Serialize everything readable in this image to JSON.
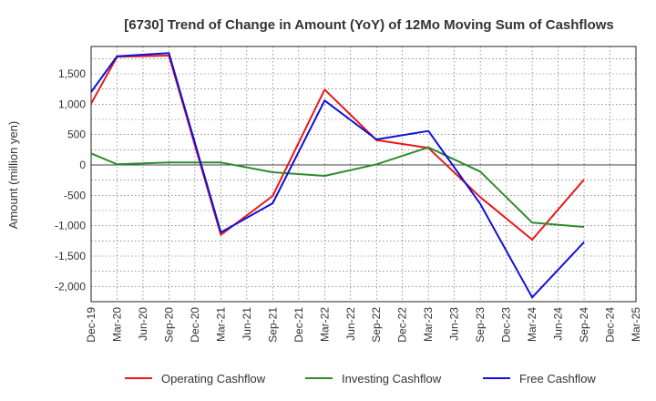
{
  "chart_data": {
    "type": "line",
    "title": "[6730]  Trend of Change in Amount (YoY) of 12Mo Moving Sum of Cashflows",
    "xlabel": "",
    "ylabel": "Amount (million yen)",
    "ylim": [
      -2250,
      1950
    ],
    "y_ticks": [
      1500,
      1000,
      500,
      0,
      -500,
      -1000,
      -1500,
      -2000
    ],
    "y_tick_labels": [
      "1,500",
      "1,000",
      "500",
      "0",
      "-500",
      "-1,000",
      "-1,500",
      "-2,000"
    ],
    "grid": true,
    "legend_position": "bottom",
    "categories": [
      "Dec-19",
      "Mar-20",
      "Jun-20",
      "Sep-20",
      "Dec-20",
      "Mar-21",
      "Jun-21",
      "Sep-21",
      "Dec-21",
      "Mar-22",
      "Jun-22",
      "Sep-22",
      "Dec-22",
      "Mar-23",
      "Jun-23",
      "Sep-23",
      "Dec-23",
      "Mar-24",
      "Jun-24",
      "Sep-24",
      "Dec-24",
      "Mar-25"
    ],
    "series": [
      {
        "name": "Operating Cashflow",
        "color": "#e8191a",
        "values": [
          1010,
          1780,
          null,
          1800,
          null,
          -1150,
          null,
          -510,
          null,
          1240,
          null,
          410,
          null,
          280,
          null,
          -530,
          null,
          -1230,
          null,
          -240,
          null,
          null
        ]
      },
      {
        "name": "Investing Cashflow",
        "color": "#2e8b2e",
        "values": [
          190,
          10,
          null,
          40,
          null,
          40,
          null,
          -120,
          null,
          -180,
          null,
          10,
          null,
          290,
          null,
          -110,
          null,
          -950,
          null,
          -1020,
          null,
          null
        ]
      },
      {
        "name": "Free Cashflow",
        "color": "#1010d8",
        "values": [
          1200,
          1790,
          null,
          1840,
          null,
          -1110,
          null,
          -630,
          null,
          1060,
          null,
          420,
          null,
          560,
          null,
          -640,
          null,
          -2180,
          null,
          -1270,
          null,
          null
        ]
      }
    ]
  }
}
